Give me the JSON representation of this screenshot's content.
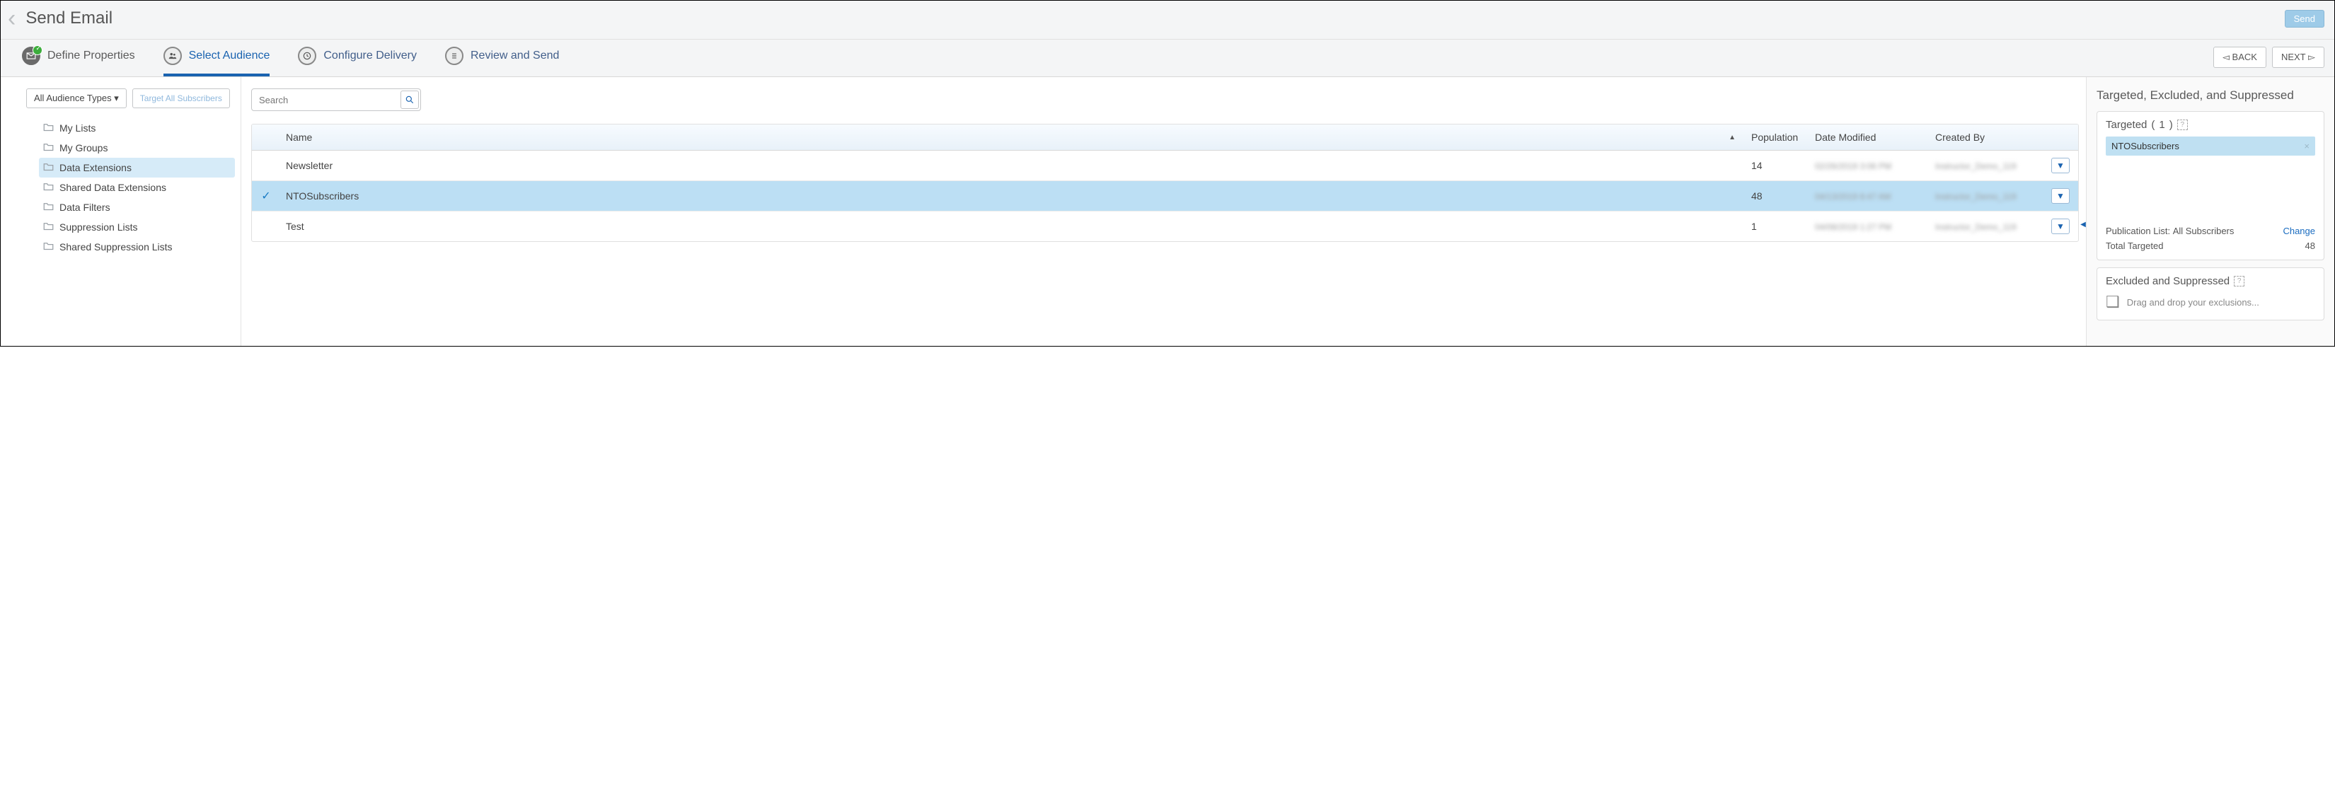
{
  "header": {
    "title": "Send Email",
    "send_label": "Send"
  },
  "wizard": {
    "steps": [
      {
        "label": "Define Properties",
        "state": "done"
      },
      {
        "label": "Select Audience",
        "state": "active"
      },
      {
        "label": "Configure Delivery",
        "state": "idle"
      },
      {
        "label": "Review and Send",
        "state": "idle"
      }
    ],
    "back_label": "BACK",
    "next_label": "NEXT"
  },
  "left": {
    "audience_type_label": "All Audience Types",
    "target_all_label": "Target All Subscribers",
    "folders": [
      {
        "label": "My Lists",
        "selected": false
      },
      {
        "label": "My Groups",
        "selected": false
      },
      {
        "label": "Data Extensions",
        "selected": true
      },
      {
        "label": "Shared Data Extensions",
        "selected": false
      },
      {
        "label": "Data Filters",
        "selected": false
      },
      {
        "label": "Suppression Lists",
        "selected": false
      },
      {
        "label": "Shared Suppression Lists",
        "selected": false
      }
    ]
  },
  "grid": {
    "search_placeholder": "Search",
    "columns": {
      "name": "Name",
      "population": "Population",
      "date_modified": "Date Modified",
      "created_by": "Created By"
    },
    "sort": {
      "column": "name",
      "dir": "asc"
    },
    "rows": [
      {
        "name": "Newsletter",
        "population": "14",
        "date_modified": "02/26/2019 3:06 PM",
        "created_by": "Instructor_Demo_119",
        "selected": false
      },
      {
        "name": "NTOSubscribers",
        "population": "48",
        "date_modified": "04/13/2019 8:47 AM",
        "created_by": "Instructor_Demo_119",
        "selected": true
      },
      {
        "name": "Test",
        "population": "1",
        "date_modified": "04/08/2019 1:27 PM",
        "created_by": "Instructor_Demo_119",
        "selected": false
      }
    ]
  },
  "right": {
    "panel_title": "Targeted, Excluded, and Suppressed",
    "targeted_heading_prefix": "Targeted",
    "targeted_count": "1",
    "targeted_items": [
      {
        "label": "NTOSubscribers"
      }
    ],
    "pub_list_label": "Publication List:",
    "pub_list_value": "All Subscribers",
    "change_label": "Change",
    "total_targeted_label": "Total Targeted",
    "total_targeted_value": "48",
    "excluded_heading": "Excluded and Suppressed",
    "excluded_placeholder": "Drag and drop your exclusions..."
  },
  "colors": {
    "brand_blue": "#1a63b0",
    "row_selected_bg": "#bcdff4",
    "chip_bg": "#bfe0f2",
    "tree_selected_bg": "#d6ebf8"
  }
}
